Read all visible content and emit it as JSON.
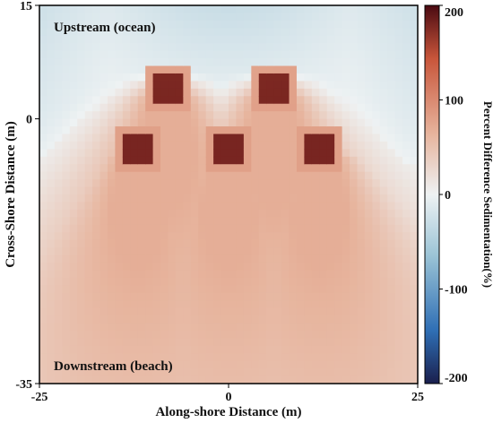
{
  "chart_data": {
    "type": "heatmap",
    "title": "",
    "xlabel": "Along-shore Distance (m)",
    "ylabel": "Cross-Shore Distance (m)",
    "xlim": [
      -25,
      25
    ],
    "ylim": [
      -35,
      15
    ],
    "x_ticks": [
      "-25",
      "0",
      "25"
    ],
    "y_ticks": [
      "15",
      "0",
      "-35"
    ],
    "x_tick_values": [
      -25,
      0,
      25
    ],
    "y_tick_values": [
      15,
      0,
      -35
    ],
    "annotations": {
      "top": "Upstream (ocean)",
      "bottom": "Downstream (beach)"
    },
    "colorbar": {
      "label": "Percent Difference Sedimentation(%)",
      "range": [
        -200,
        200
      ],
      "ticks": [
        "200",
        "100",
        "0",
        "-100",
        "-200"
      ],
      "tick_values": [
        200,
        100,
        0,
        -100,
        -200
      ],
      "colormap": "blue-white-red (diverging)"
    },
    "structures": [
      {
        "x": -8,
        "y": 4
      },
      {
        "x": 6,
        "y": 4
      },
      {
        "x": -12,
        "y": -4
      },
      {
        "x": 0,
        "y": -4
      },
      {
        "x": 12,
        "y": -4
      }
    ],
    "field_description_values": {
      "background_upstream_min": -30,
      "structure_peak": 180,
      "downstream_plume_max": 70
    }
  },
  "colors": {
    "neg_dark": "#1a1f4d",
    "neg_mid": "#2f6fb5",
    "neg_light": "#9cc4d6",
    "neutral": "#eef2f3",
    "pos_light": "#e7b49d",
    "pos_mid": "#c8553a",
    "pos_dark": "#4a0a12"
  }
}
